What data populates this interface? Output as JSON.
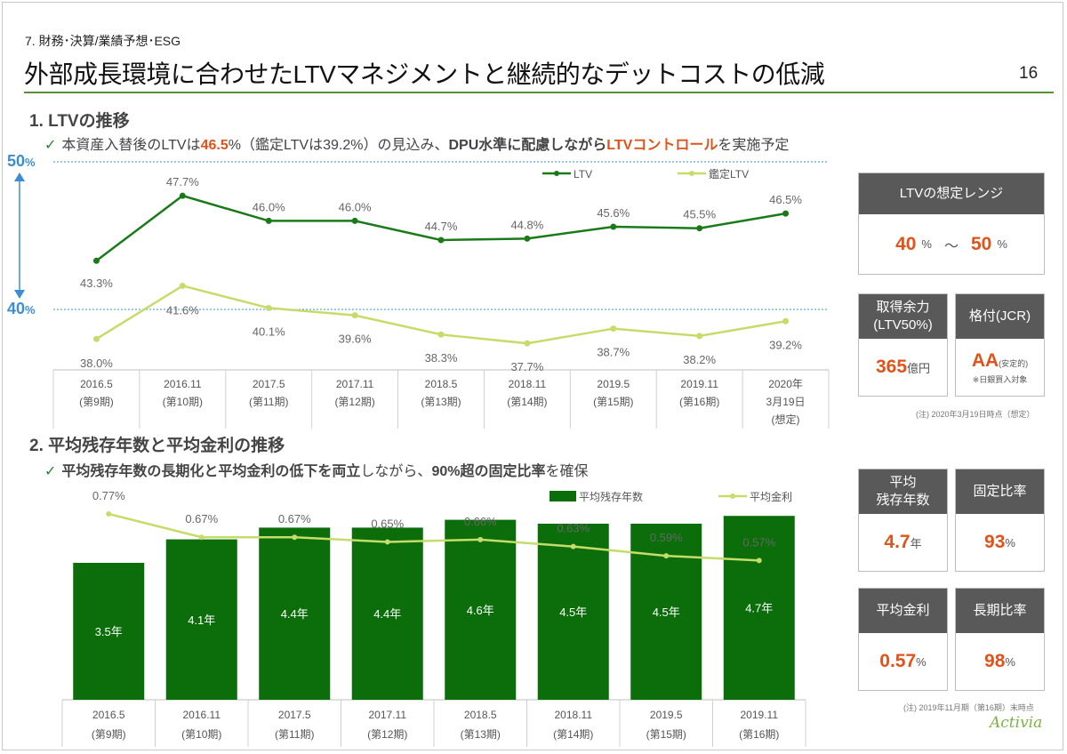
{
  "header": {
    "section": "7. 財務･決算/業績予想･ESG",
    "title": "外部成長環境に合わせたLTVマネジメントと継続的なデットコストの低減",
    "page_number": "16"
  },
  "ltv_section": {
    "heading": "1. LTVの推移",
    "note_parts": [
      "本資産入替後のLTVは",
      "46.5",
      "%（鑑定LTVは39.2%）の見込み、",
      "DPU水準に配慮しながら",
      "LTVコントロール",
      "を実施予定"
    ],
    "axis_top": {
      "value": "50",
      "unit": "%"
    },
    "axis_bottom": {
      "value": "40",
      "unit": "%"
    }
  },
  "ltv_cards": {
    "range": {
      "title": "LTVの想定レンジ",
      "low": "40",
      "low_unit": "%",
      "sep": "～",
      "high": "50",
      "high_unit": "%"
    },
    "capacity": {
      "title_line1": "取得余力",
      "title_line2": "(LTV50%)",
      "value": "365",
      "unit": "億円"
    },
    "rating": {
      "title": "格付(JCR)",
      "value": "AA",
      "sub": "(安定的)",
      "note": "※日銀買入対象"
    },
    "footnote": "(注) 2020年3月19日時点（想定）"
  },
  "debt_section": {
    "heading": "2. 平均残存年数と平均金利の推移",
    "note_parts": [
      "平均残存年数の長期化と平均金利の低下を両立",
      "しながら、",
      "90%超の固定比率",
      "を確保"
    ]
  },
  "debt_cards": {
    "remaining": {
      "title_line1": "平均",
      "title_line2": "残存年数",
      "value": "4.7",
      "unit": "年"
    },
    "fixed": {
      "title": "固定比率",
      "value": "93",
      "unit": "%"
    },
    "rate": {
      "title": "平均金利",
      "value": "0.57",
      "unit": "%"
    },
    "longterm": {
      "title": "長期比率",
      "value": "98",
      "unit": "%"
    },
    "footnote": "(注) 2019年11月期（第16期）末時点"
  },
  "logo": {
    "text": "Activia"
  },
  "colors": {
    "ltv": "#1a7a1a",
    "appraisal": "#c6dc6a",
    "bar": "#0b6e0b",
    "accent": "#e0531a",
    "axis_blue": "#3b8fd0"
  },
  "chart_data": [
    {
      "type": "line",
      "title": "",
      "categories": [
        [
          "2016.5",
          "(第9期)"
        ],
        [
          "2016.11",
          "(第10期)"
        ],
        [
          "2017.5",
          "(第11期)"
        ],
        [
          "2017.11",
          "(第12期)"
        ],
        [
          "2018.5",
          "(第13期)"
        ],
        [
          "2018.11",
          "(第14期)"
        ],
        [
          "2019.5",
          "(第15期)"
        ],
        [
          "2019.11",
          "(第16期)"
        ],
        [
          "2020年",
          "3月19日",
          "(想定)"
        ]
      ],
      "series": [
        {
          "name": "LTV",
          "values": [
            43.3,
            47.7,
            46.0,
            46.0,
            44.7,
            44.8,
            45.6,
            45.5,
            46.5
          ],
          "labels": [
            "43.3%",
            "47.7%",
            "46.0%",
            "46.0%",
            "44.7%",
            "44.8%",
            "45.6%",
            "45.5%",
            "46.5%"
          ]
        },
        {
          "name": "鑑定LTV",
          "values": [
            38.0,
            41.6,
            40.1,
            39.6,
            38.3,
            37.7,
            38.7,
            38.2,
            39.2
          ],
          "labels": [
            "38.0%",
            "41.6%",
            "40.1%",
            "39.6%",
            "38.3%",
            "37.7%",
            "38.7%",
            "38.2%",
            "39.2%"
          ]
        }
      ],
      "reference_lines": [
        50,
        40
      ],
      "legend": "top-right"
    },
    {
      "type": "bar",
      "title": "",
      "categories": [
        [
          "2016.5",
          "(第9期)"
        ],
        [
          "2016.11",
          "(第10期)"
        ],
        [
          "2017.5",
          "(第11期)"
        ],
        [
          "2017.11",
          "(第12期)"
        ],
        [
          "2018.5",
          "(第13期)"
        ],
        [
          "2018.11",
          "(第14期)"
        ],
        [
          "2019.5",
          "(第15期)"
        ],
        [
          "2019.11",
          "(第16期)"
        ]
      ],
      "series": [
        {
          "name": "平均残存年数",
          "type": "bar",
          "values": [
            3.5,
            4.1,
            4.4,
            4.4,
            4.6,
            4.5,
            4.5,
            4.7
          ],
          "labels": [
            "3.5年",
            "4.1年",
            "4.4年",
            "4.4年",
            "4.6年",
            "4.5年",
            "4.5年",
            "4.7年"
          ]
        },
        {
          "name": "平均金利",
          "type": "line",
          "values": [
            0.77,
            0.67,
            0.67,
            0.65,
            0.66,
            0.63,
            0.59,
            0.57
          ],
          "labels": [
            "0.77%",
            "0.67%",
            "0.67%",
            "0.65%",
            "0.66%",
            "0.63%",
            "0.59%",
            "0.57%"
          ]
        }
      ],
      "legend": "top-right"
    }
  ]
}
